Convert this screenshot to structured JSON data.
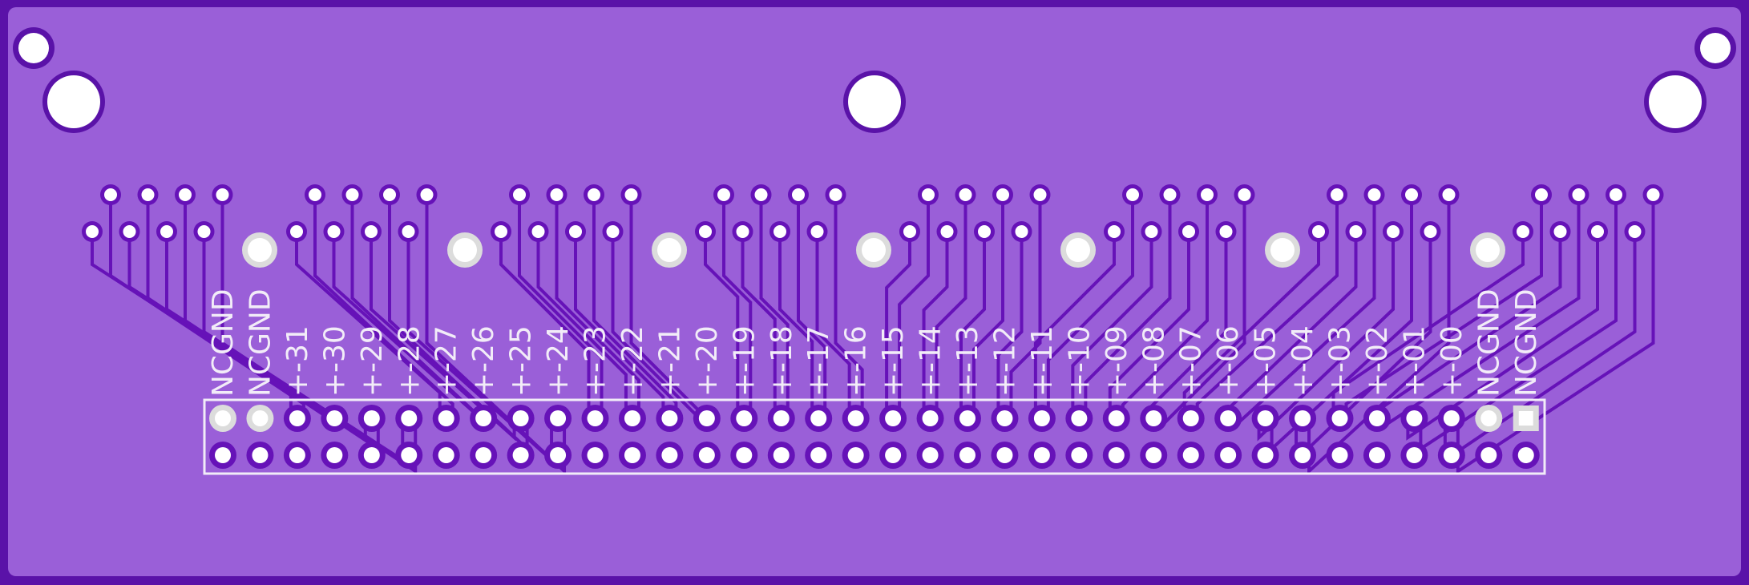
{
  "board": {
    "colors": {
      "outline": "#5a12a8",
      "board": "#9a5fd8",
      "copper": "#6612b8",
      "pad_ring": "#dcdcdc",
      "drill": "#ffffff",
      "silk": "#f2ecf8"
    }
  },
  "header": {
    "labels_row_a": [
      "NC",
      "NC",
      "+",
      "+",
      "+",
      "+",
      "+",
      "+",
      "+",
      "+",
      "+",
      "+",
      "+",
      "+",
      "+",
      "+",
      "+",
      "+",
      "+",
      "+",
      "+",
      "+",
      "+",
      "+",
      "+",
      "+",
      "+",
      "+",
      "+",
      "+",
      "+",
      "+",
      "+",
      "+",
      "NC",
      "NC"
    ],
    "labels_row_b": [
      "GND",
      "GND",
      "-31",
      "-30",
      "-29",
      "-28",
      "-27",
      "-26",
      "-25",
      "-24",
      "-23",
      "-22",
      "-21",
      "-20",
      "-19",
      "-18",
      "-17",
      "-16",
      "-15",
      "-14",
      "-13",
      "-12",
      "-11",
      "-10",
      "-09",
      "-08",
      "-07",
      "-06",
      "-05",
      "-04",
      "-03",
      "-02",
      "-01",
      "-00",
      "GND",
      "GND"
    ]
  }
}
